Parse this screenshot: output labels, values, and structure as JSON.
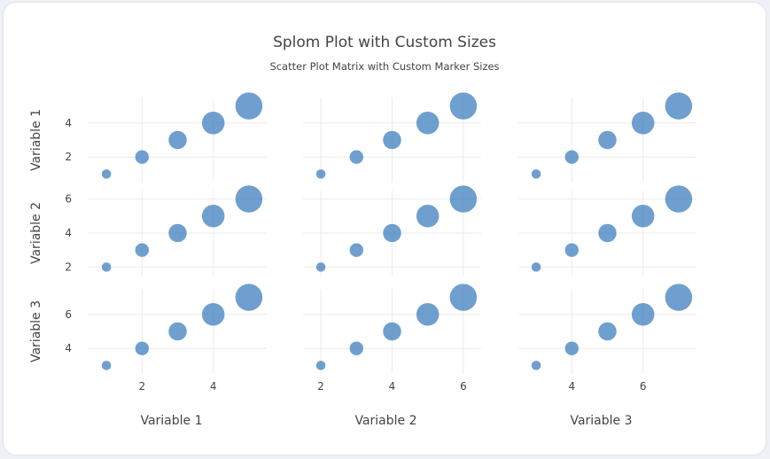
{
  "chart_data": {
    "type": "scatter",
    "subtype": "splom",
    "title": "Splom Plot with Custom Sizes",
    "subtitle": "Scatter Plot Matrix with Custom Marker Sizes",
    "dimensions": [
      {
        "label": "Variable 1",
        "values": [
          1,
          2,
          3,
          4,
          5
        ],
        "range": [
          0.5,
          5.5
        ],
        "ticks": [
          2,
          4
        ]
      },
      {
        "label": "Variable 2",
        "values": [
          2,
          3,
          4,
          5,
          6
        ],
        "range": [
          1.5,
          6.5
        ],
        "ticks": [
          2,
          4,
          6
        ]
      },
      {
        "label": "Variable 3",
        "values": [
          3,
          4,
          5,
          6,
          7
        ],
        "range": [
          2.5,
          7.5
        ],
        "ticks": [
          4,
          6
        ]
      }
    ],
    "marker_sizes": [
      10,
      15,
      20,
      25,
      30
    ],
    "marker_color": "#3f7fbf",
    "marker_opacity": 0.75,
    "grid": true,
    "diagonal_visible": true
  }
}
